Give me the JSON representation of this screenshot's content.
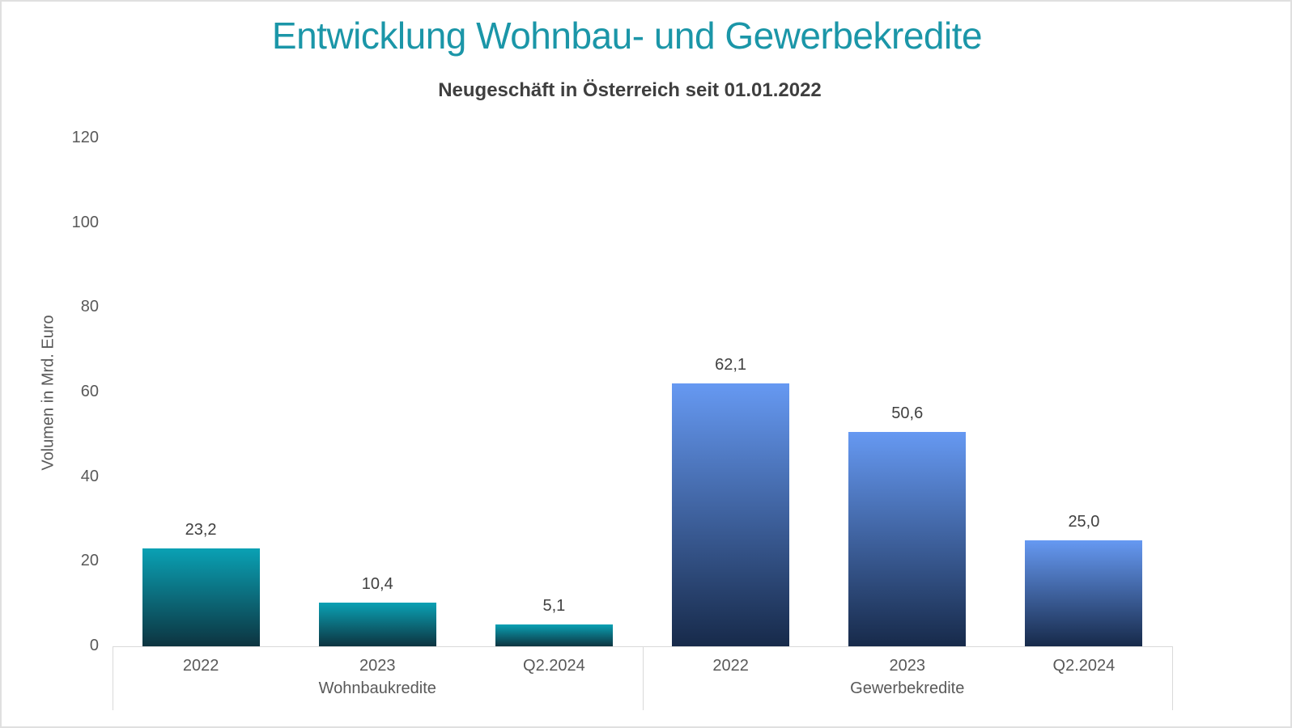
{
  "chart_data": {
    "type": "bar",
    "title": "Entwicklung Wohnbau- und Gewerbekredite",
    "subtitle": "Neugeschäft in Österreich seit 01.01.2022",
    "ylabel": "Volumen in Mrd. Euro",
    "ylim": [
      0,
      120
    ],
    "yticks": [
      0,
      20,
      40,
      60,
      80,
      100,
      120
    ],
    "grid": false,
    "legend": "none",
    "number_format": "german-decimal-comma",
    "categories": [
      "2022",
      "2023",
      "Q2.2024"
    ],
    "groups": [
      {
        "name": "Wohnbaukredite",
        "bar_color_top": "#0aa1b4",
        "bar_color_bottom": "#0d3440",
        "bars": [
          {
            "category": "2022",
            "value": 23.2,
            "label": "23,2"
          },
          {
            "category": "2023",
            "value": 10.4,
            "label": "10,4"
          },
          {
            "category": "Q2.2024",
            "value": 5.1,
            "label": "5,1"
          }
        ]
      },
      {
        "name": "Gewerbekredite",
        "bar_color_top": "#6699f2",
        "bar_color_bottom": "#172a4a",
        "bars": [
          {
            "category": "2022",
            "value": 62.1,
            "label": "62,1"
          },
          {
            "category": "2023",
            "value": 50.6,
            "label": "50,6"
          },
          {
            "category": "Q2.2024",
            "value": 25.0,
            "label": "25,0"
          }
        ]
      }
    ]
  },
  "colors": {
    "title": "#1b96a8",
    "subtitle": "#3f3f3f",
    "axis_text": "#595959",
    "value_label": "#404040",
    "axis_line": "#d9d9d9",
    "frame_border": "#e0e0e0",
    "background": "#ffffff"
  }
}
